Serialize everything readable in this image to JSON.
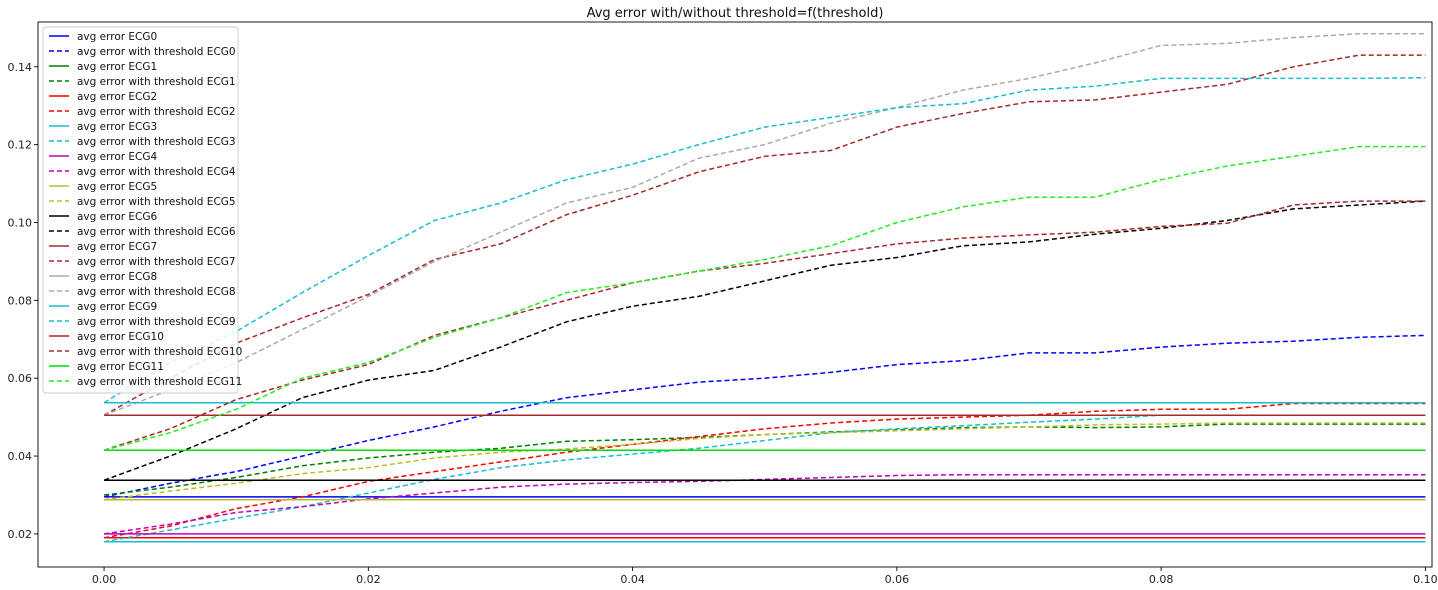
{
  "chart_data": {
    "type": "line",
    "title": "Avg error with/without threshold=f(threshold)",
    "xlabel": "",
    "ylabel": "",
    "xlim": [
      -0.005,
      0.1005
    ],
    "ylim": [
      0.0115,
      0.1515
    ],
    "x_ticks": [
      0.0,
      0.02,
      0.04,
      0.06,
      0.08,
      0.1
    ],
    "x_tick_labels": [
      "0.00",
      "0.02",
      "0.04",
      "0.06",
      "0.08",
      "0.10"
    ],
    "y_ticks": [
      0.02,
      0.04,
      0.06,
      0.08,
      0.1,
      0.12,
      0.14
    ],
    "y_tick_labels": [
      "0.02",
      "0.04",
      "0.06",
      "0.08",
      "0.10",
      "0.12",
      "0.14"
    ],
    "grid": false,
    "legend_position": "upper-left",
    "x": [
      0.0,
      0.005,
      0.01,
      0.015,
      0.02,
      0.025,
      0.03,
      0.035,
      0.04,
      0.045,
      0.05,
      0.055,
      0.06,
      0.065,
      0.07,
      0.075,
      0.08,
      0.085,
      0.09,
      0.095,
      0.1
    ],
    "series": [
      {
        "name": "avg error ECG0",
        "color": "#0000ff",
        "style": "solid",
        "values": [
          0.0295,
          0.0295,
          0.0295,
          0.0295,
          0.0295,
          0.0295,
          0.0295,
          0.0295,
          0.0295,
          0.0295,
          0.0295,
          0.0295,
          0.0295,
          0.0295,
          0.0295,
          0.0295,
          0.0295,
          0.0295,
          0.0295,
          0.0295,
          0.0295
        ]
      },
      {
        "name": "avg error with threshold ECG0",
        "color": "#0000ff",
        "style": "dashed",
        "values": [
          0.0295,
          0.033,
          0.036,
          0.04,
          0.044,
          0.0475,
          0.0515,
          0.055,
          0.057,
          0.059,
          0.06,
          0.0615,
          0.0635,
          0.0645,
          0.0665,
          0.0665,
          0.068,
          0.069,
          0.0695,
          0.0705,
          0.071
        ]
      },
      {
        "name": "avg error ECG1",
        "color": "#008000",
        "style": "solid",
        "values": [
          0.0415,
          0.0415,
          0.0415,
          0.0415,
          0.0415,
          0.0415,
          0.0415,
          0.0415,
          0.0415,
          0.0415,
          0.0415,
          0.0415,
          0.0415,
          0.0415,
          0.0415,
          0.0415,
          0.0415,
          0.0415,
          0.0415,
          0.0415,
          0.0415
        ]
      },
      {
        "name": "avg error with threshold ECG1",
        "color": "#008000",
        "style": "dashed",
        "values": [
          0.03,
          0.032,
          0.0345,
          0.0375,
          0.0395,
          0.041,
          0.042,
          0.0438,
          0.0442,
          0.0448,
          0.0455,
          0.0462,
          0.0467,
          0.0473,
          0.0475,
          0.0473,
          0.0475,
          0.0482,
          0.0482,
          0.0482,
          0.0482
        ]
      },
      {
        "name": "avg error ECG2",
        "color": "#ff0000",
        "style": "solid",
        "values": [
          0.019,
          0.019,
          0.019,
          0.019,
          0.019,
          0.019,
          0.019,
          0.019,
          0.019,
          0.019,
          0.019,
          0.019,
          0.019,
          0.019,
          0.019,
          0.019,
          0.019,
          0.019,
          0.019,
          0.019,
          0.019
        ]
      },
      {
        "name": "avg error with threshold ECG2",
        "color": "#ff0000",
        "style": "dashed",
        "values": [
          0.019,
          0.022,
          0.0265,
          0.0295,
          0.0335,
          0.036,
          0.0385,
          0.041,
          0.043,
          0.045,
          0.047,
          0.0485,
          0.0495,
          0.05,
          0.0505,
          0.0515,
          0.052,
          0.052,
          0.0535,
          0.0535,
          0.0535
        ]
      },
      {
        "name": "avg error ECG3",
        "color": "#17becf",
        "style": "solid",
        "values": [
          0.018,
          0.018,
          0.018,
          0.018,
          0.018,
          0.018,
          0.018,
          0.018,
          0.018,
          0.018,
          0.018,
          0.018,
          0.018,
          0.018,
          0.018,
          0.018,
          0.018,
          0.018,
          0.018,
          0.018,
          0.018
        ]
      },
      {
        "name": "avg error with threshold ECG3",
        "color": "#17becf",
        "style": "dashed",
        "values": [
          0.018,
          0.021,
          0.024,
          0.027,
          0.0305,
          0.034,
          0.037,
          0.039,
          0.0405,
          0.042,
          0.044,
          0.046,
          0.047,
          0.0478,
          0.0487,
          0.0495,
          0.0505,
          0.0505,
          0.0505,
          0.0505,
          0.0505
        ]
      },
      {
        "name": "avg error ECG4",
        "color": "#c000c0",
        "style": "solid",
        "values": [
          0.02,
          0.02,
          0.02,
          0.02,
          0.02,
          0.02,
          0.02,
          0.02,
          0.02,
          0.02,
          0.02,
          0.02,
          0.02,
          0.02,
          0.02,
          0.02,
          0.02,
          0.02,
          0.02,
          0.02,
          0.02
        ]
      },
      {
        "name": "avg error with threshold ECG4",
        "color": "#c000c0",
        "style": "dashed",
        "values": [
          0.02,
          0.0225,
          0.0255,
          0.027,
          0.029,
          0.0305,
          0.032,
          0.0328,
          0.0332,
          0.0335,
          0.034,
          0.0345,
          0.035,
          0.0352,
          0.0352,
          0.0352,
          0.0352,
          0.0352,
          0.0352,
          0.0352,
          0.0352
        ]
      },
      {
        "name": "avg error ECG5",
        "color": "#bcbd22",
        "style": "solid",
        "values": [
          0.0288,
          0.0288,
          0.0288,
          0.0288,
          0.0288,
          0.0288,
          0.0288,
          0.0288,
          0.0288,
          0.0288,
          0.0288,
          0.0288,
          0.0288,
          0.0288,
          0.0288,
          0.0288,
          0.0288,
          0.0288,
          0.0288,
          0.0288,
          0.0288
        ]
      },
      {
        "name": "avg error with threshold ECG5",
        "color": "#bcbd22",
        "style": "dashed",
        "values": [
          0.0288,
          0.031,
          0.033,
          0.0355,
          0.037,
          0.0395,
          0.041,
          0.0418,
          0.043,
          0.0445,
          0.0455,
          0.046,
          0.0465,
          0.047,
          0.0475,
          0.048,
          0.0482,
          0.0485,
          0.0485,
          0.0485,
          0.0485
        ]
      },
      {
        "name": "avg error ECG6",
        "color": "#000000",
        "style": "solid",
        "values": [
          0.0338,
          0.0338,
          0.0338,
          0.0338,
          0.0338,
          0.0338,
          0.0338,
          0.0338,
          0.0338,
          0.0338,
          0.0338,
          0.0338,
          0.0338,
          0.0338,
          0.0338,
          0.0338,
          0.0338,
          0.0338,
          0.0338,
          0.0338,
          0.0338
        ]
      },
      {
        "name": "avg error with threshold ECG6",
        "color": "#000000",
        "style": "dashed",
        "values": [
          0.0338,
          0.04,
          0.047,
          0.055,
          0.0595,
          0.062,
          0.068,
          0.0745,
          0.0785,
          0.081,
          0.085,
          0.089,
          0.091,
          0.094,
          0.095,
          0.097,
          0.0985,
          0.1005,
          0.1035,
          0.1045,
          0.1055
        ]
      },
      {
        "name": "avg error ECG7",
        "color": "#a52a2a",
        "style": "solid",
        "values": [
          0.0505,
          0.0505,
          0.0505,
          0.0505,
          0.0505,
          0.0505,
          0.0505,
          0.0505,
          0.0505,
          0.0505,
          0.0505,
          0.0505,
          0.0505,
          0.0505,
          0.0505,
          0.0505,
          0.0505,
          0.0505,
          0.0505,
          0.0505,
          0.0505
        ]
      },
      {
        "name": "avg error with threshold ECG7",
        "color": "#a52a2a",
        "style": "dashed",
        "values": [
          0.0505,
          0.06,
          0.069,
          0.0755,
          0.0815,
          0.0905,
          0.0945,
          0.102,
          0.107,
          0.113,
          0.117,
          0.1185,
          0.1245,
          0.128,
          0.131,
          0.1315,
          0.1335,
          0.1355,
          0.14,
          0.143,
          0.143
        ]
      },
      {
        "name": "avg error ECG8",
        "color": "#aaaaaa",
        "style": "solid",
        "values": [
          0.0505,
          0.0505,
          0.0505,
          0.0505,
          0.0505,
          0.0505,
          0.0505,
          0.0505,
          0.0505,
          0.0505,
          0.0505,
          0.0505,
          0.0505,
          0.0505,
          0.0505,
          0.0505,
          0.0505,
          0.0505,
          0.0505,
          0.0505,
          0.0505
        ]
      },
      {
        "name": "avg error with threshold ECG8",
        "color": "#aaaaaa",
        "style": "dashed",
        "values": [
          0.0505,
          0.057,
          0.064,
          0.0725,
          0.081,
          0.09,
          0.0975,
          0.105,
          0.109,
          0.1165,
          0.12,
          0.1255,
          0.1295,
          0.134,
          0.137,
          0.141,
          0.1455,
          0.146,
          0.1475,
          0.1485,
          0.1485
        ]
      },
      {
        "name": "avg error ECG9",
        "color": "#17becf",
        "style": "solid",
        "values": [
          0.0537,
          0.0537,
          0.0537,
          0.0537,
          0.0537,
          0.0537,
          0.0537,
          0.0537,
          0.0537,
          0.0537,
          0.0537,
          0.0537,
          0.0537,
          0.0537,
          0.0537,
          0.0537,
          0.0537,
          0.0537,
          0.0537,
          0.0537,
          0.0537
        ]
      },
      {
        "name": "avg error with threshold ECG9",
        "color": "#17becf",
        "style": "dashed",
        "values": [
          0.0537,
          0.064,
          0.072,
          0.082,
          0.0915,
          0.1005,
          0.105,
          0.111,
          0.115,
          0.12,
          0.1245,
          0.127,
          0.1295,
          0.1305,
          0.134,
          0.135,
          0.137,
          0.137,
          0.137,
          0.137,
          0.1372
        ]
      },
      {
        "name": "avg error ECG10",
        "color": "#a52a2a",
        "style": "solid",
        "values": [
          0.0505,
          0.0505,
          0.0505,
          0.0505,
          0.0505,
          0.0505,
          0.0505,
          0.0505,
          0.0505,
          0.0505,
          0.0505,
          0.0505,
          0.0505,
          0.0505,
          0.0505,
          0.0505,
          0.0505,
          0.0505,
          0.0505,
          0.0505,
          0.0505
        ]
      },
      {
        "name": "avg error with threshold ECG10",
        "color": "#a52a2a",
        "style": "dashed",
        "values": [
          0.0415,
          0.047,
          0.0545,
          0.0595,
          0.0635,
          0.071,
          0.0755,
          0.08,
          0.0845,
          0.0875,
          0.0895,
          0.092,
          0.0945,
          0.096,
          0.0968,
          0.0975,
          0.099,
          0.0998,
          0.1045,
          0.1055,
          0.1055
        ]
      },
      {
        "name": "avg error ECG11",
        "color": "#00dd00",
        "style": "solid",
        "values": [
          0.0415,
          0.0415,
          0.0415,
          0.0415,
          0.0415,
          0.0415,
          0.0415,
          0.0415,
          0.0415,
          0.0415,
          0.0415,
          0.0415,
          0.0415,
          0.0415,
          0.0415,
          0.0415,
          0.0415,
          0.0415,
          0.0415,
          0.0415,
          0.0415
        ]
      },
      {
        "name": "avg error with threshold ECG11",
        "color": "#22ee22",
        "style": "dashed",
        "values": [
          0.0415,
          0.046,
          0.052,
          0.06,
          0.064,
          0.0705,
          0.0755,
          0.082,
          0.0845,
          0.0875,
          0.0905,
          0.094,
          0.1,
          0.104,
          0.1065,
          0.1065,
          0.111,
          0.1145,
          0.117,
          0.1195,
          0.1195
        ]
      }
    ]
  }
}
